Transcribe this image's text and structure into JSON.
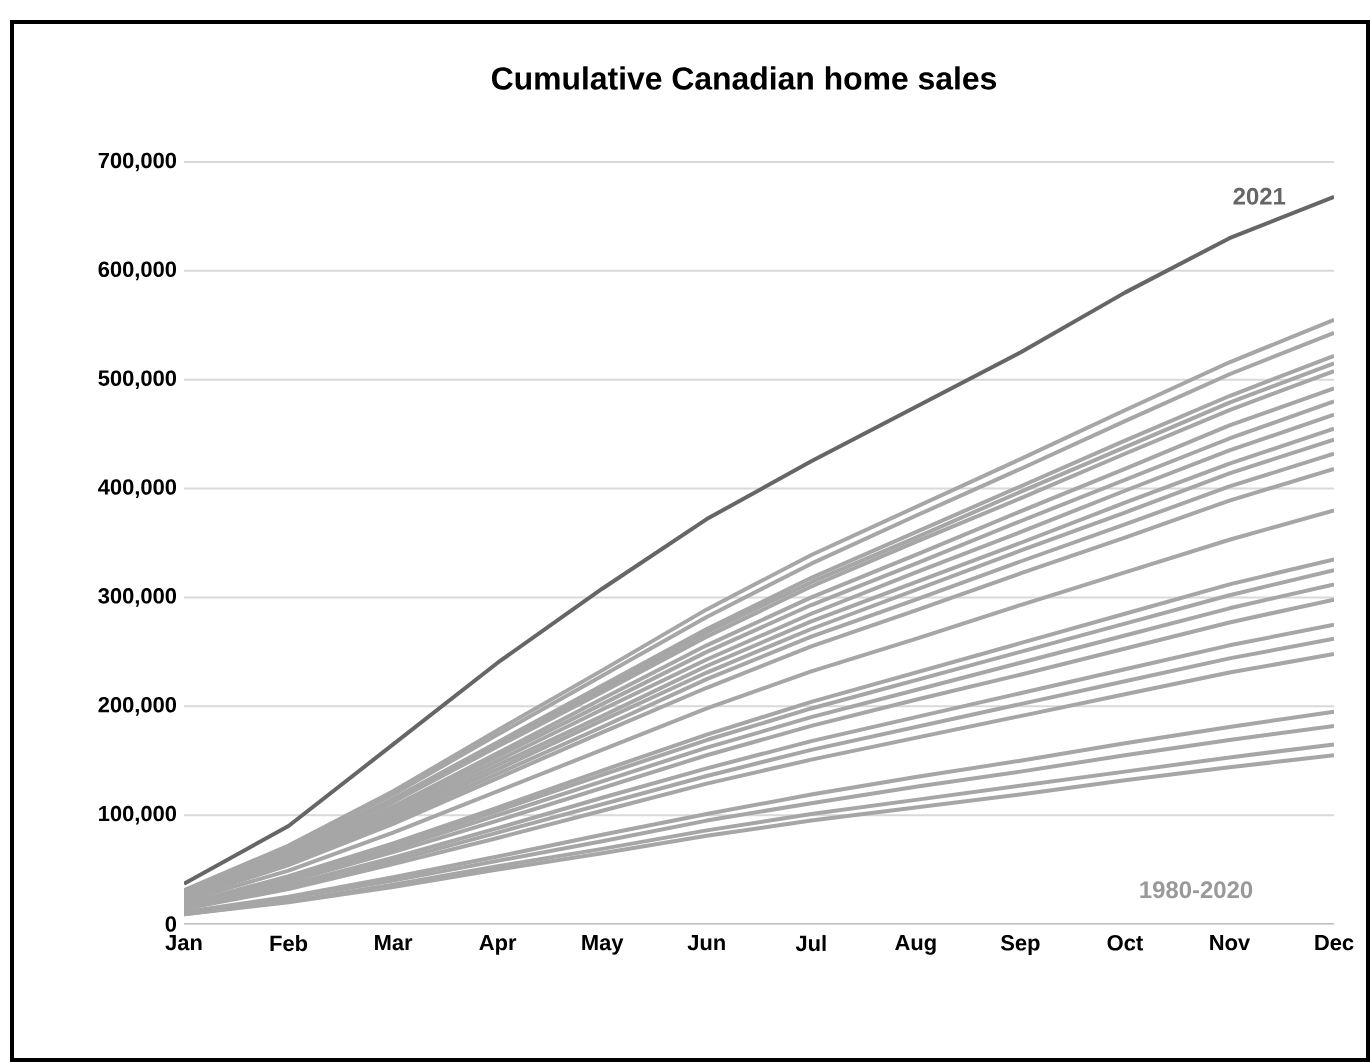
{
  "chart_data": {
    "type": "line",
    "title": "Cumulative Canadian home sales",
    "categories": [
      "Jan",
      "Feb",
      "Mar",
      "Apr",
      "May",
      "Jun",
      "Jul",
      "Aug",
      "Sep",
      "Oct",
      "Nov",
      "Dec"
    ],
    "ylim": [
      0,
      700000
    ],
    "yticks": [
      {
        "value": 0,
        "label": "0"
      },
      {
        "value": 100000,
        "label": "100,000"
      },
      {
        "value": 200000,
        "label": "200,000"
      },
      {
        "value": 300000,
        "label": "300,000"
      },
      {
        "value": 400000,
        "label": "400,000"
      },
      {
        "value": 500000,
        "label": "500,000"
      },
      {
        "value": 600000,
        "label": "600,000"
      },
      {
        "value": 700000,
        "label": "700,000"
      }
    ],
    "grid": "y",
    "marker": "none",
    "line_style": "solid",
    "annotations": [
      "2021",
      "1980-2020"
    ],
    "series": [
      {
        "color": "#a6a6a6",
        "values": [
          31000,
          72000,
          122000,
          178000,
          233000,
          289000,
          339000,
          383000,
          427000,
          472000,
          516000,
          555000
        ]
      },
      {
        "color": "#a6a6a6",
        "values": [
          30000,
          71000,
          119000,
          174000,
          228000,
          282000,
          331000,
          375000,
          418000,
          462000,
          505000,
          543000
        ]
      },
      {
        "color": "#a6a6a6",
        "values": [
          29000,
          68000,
          115000,
          167000,
          219000,
          271000,
          318000,
          360000,
          402000,
          444000,
          485000,
          522000
        ]
      },
      {
        "color": "#a6a6a6",
        "values": [
          28000,
          67000,
          113000,
          165000,
          216000,
          268000,
          314000,
          355000,
          397000,
          438000,
          479000,
          515000
        ]
      },
      {
        "color": "#a6a6a6",
        "values": [
          28000,
          66000,
          112000,
          163000,
          213000,
          264000,
          310000,
          351000,
          391000,
          432000,
          472000,
          508000
        ]
      },
      {
        "color": "#a6a6a6",
        "values": [
          27000,
          64000,
          108000,
          157000,
          207000,
          256000,
          300000,
          339000,
          379000,
          418000,
          458000,
          492000
        ]
      },
      {
        "color": "#a6a6a6",
        "values": [
          26000,
          62000,
          106000,
          154000,
          202000,
          250000,
          293000,
          331000,
          370000,
          408000,
          446000,
          480000
        ]
      },
      {
        "color": "#a6a6a6",
        "values": [
          26000,
          61000,
          103000,
          150000,
          197000,
          243000,
          285000,
          323000,
          360000,
          398000,
          435000,
          468000
        ]
      },
      {
        "color": "#a6a6a6",
        "values": [
          25000,
          59000,
          100000,
          146000,
          191000,
          237000,
          278000,
          314000,
          350000,
          387000,
          423000,
          455000
        ]
      },
      {
        "color": "#a6a6a6",
        "values": [
          24000,
          58000,
          98000,
          142000,
          187000,
          231000,
          271000,
          307000,
          343000,
          378000,
          414000,
          445000
        ]
      },
      {
        "color": "#a6a6a6",
        "values": [
          24000,
          56000,
          95000,
          138000,
          181000,
          225000,
          264000,
          298000,
          333000,
          367000,
          402000,
          432000
        ]
      },
      {
        "color": "#a6a6a6",
        "values": [
          23000,
          54000,
          92000,
          134000,
          176000,
          217000,
          255000,
          288000,
          322000,
          355000,
          389000,
          418000
        ]
      },
      {
        "color": "#a6a6a6",
        "values": [
          21000,
          49000,
          84000,
          122000,
          160000,
          198000,
          232000,
          262000,
          293000,
          323000,
          353000,
          380000
        ]
      },
      {
        "color": "#a6a6a6",
        "values": [
          18000,
          44000,
          74000,
          107000,
          141000,
          174000,
          204000,
          231000,
          258000,
          285000,
          312000,
          335000
        ]
      },
      {
        "color": "#a6a6a6",
        "values": [
          18000,
          42000,
          72000,
          104000,
          137000,
          169000,
          198000,
          224000,
          250000,
          276000,
          302000,
          325000
        ]
      },
      {
        "color": "#a6a6a6",
        "values": [
          17000,
          41000,
          69000,
          100000,
          131000,
          162000,
          190000,
          215000,
          240000,
          265000,
          290000,
          312000
        ]
      },
      {
        "color": "#a6a6a6",
        "values": [
          16000,
          39000,
          66000,
          95000,
          125000,
          155000,
          182000,
          206000,
          229000,
          253000,
          277000,
          298000
        ]
      },
      {
        "color": "#a6a6a6",
        "values": [
          15000,
          36000,
          61000,
          88000,
          116000,
          143000,
          168000,
          190000,
          212000,
          234000,
          256000,
          275000
        ]
      },
      {
        "color": "#a6a6a6",
        "values": [
          14000,
          34000,
          58000,
          84000,
          110000,
          136000,
          160000,
          181000,
          202000,
          223000,
          244000,
          262000
        ]
      },
      {
        "color": "#a6a6a6",
        "values": [
          14000,
          32000,
          55000,
          79000,
          104000,
          129000,
          151000,
          171000,
          191000,
          211000,
          231000,
          248000
        ]
      },
      {
        "color": "#a6a6a6",
        "values": [
          11000,
          25000,
          43000,
          62000,
          82000,
          101000,
          119000,
          135000,
          150000,
          166000,
          181000,
          195000
        ]
      },
      {
        "color": "#a6a6a6",
        "values": [
          10000,
          24000,
          40000,
          58000,
          76000,
          95000,
          111000,
          126000,
          140000,
          155000,
          169000,
          182000
        ]
      },
      {
        "color": "#a6a6a6",
        "values": [
          9000,
          21000,
          36000,
          53000,
          69000,
          86000,
          101000,
          114000,
          127000,
          140000,
          153000,
          165000
        ]
      },
      {
        "color": "#a6a6a6",
        "values": [
          9000,
          20000,
          34000,
          50000,
          65000,
          81000,
          95000,
          107000,
          119000,
          132000,
          144000,
          155000
        ]
      },
      {
        "color": "#666666",
        "values": [
          37000,
          90000,
          165000,
          240000,
          308000,
          372000,
          425000,
          475000,
          525000,
          580000,
          630000,
          668000
        ]
      }
    ]
  }
}
